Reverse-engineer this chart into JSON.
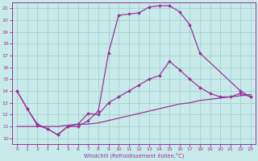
{
  "xlabel": "Windchill (Refroidissement éolien,°C)",
  "bg_color": "#c8eaea",
  "grid_color": "#a0cccc",
  "line_color": "#993399",
  "xlim": [
    -0.5,
    23.5
  ],
  "ylim": [
    9.5,
    21.5
  ],
  "yticks": [
    10,
    11,
    12,
    13,
    14,
    15,
    16,
    17,
    18,
    19,
    20,
    21
  ],
  "xticks": [
    0,
    1,
    2,
    3,
    4,
    5,
    6,
    7,
    8,
    9,
    10,
    11,
    12,
    13,
    14,
    15,
    16,
    17,
    18,
    19,
    20,
    21,
    22,
    23
  ],
  "line1_x": [
    0,
    1,
    2,
    3,
    4,
    5,
    6,
    7,
    8,
    9,
    10,
    11,
    12,
    13,
    14,
    15,
    16,
    17,
    18,
    22,
    23
  ],
  "line1_y": [
    14.0,
    12.5,
    11.1,
    10.8,
    10.3,
    11.0,
    11.0,
    11.5,
    12.3,
    17.2,
    20.4,
    20.5,
    20.6,
    21.1,
    21.2,
    21.2,
    20.7,
    19.6,
    17.2,
    14.0,
    13.5
  ],
  "line2_x": [
    0,
    1,
    2,
    3,
    4,
    5,
    6,
    7,
    8,
    9,
    10,
    11,
    12,
    13,
    14,
    15,
    16,
    17,
    18,
    19,
    20,
    21,
    22,
    23
  ],
  "line2_y": [
    14.0,
    12.5,
    11.2,
    10.8,
    10.3,
    11.0,
    11.2,
    12.1,
    12.0,
    13.0,
    13.5,
    14.0,
    14.5,
    15.0,
    15.3,
    16.5,
    15.8,
    15.0,
    14.3,
    13.8,
    13.5,
    13.5,
    13.8,
    13.5
  ],
  "line3_x": [
    0,
    1,
    2,
    3,
    4,
    5,
    6,
    7,
    8,
    9,
    10,
    11,
    12,
    13,
    14,
    15,
    16,
    17,
    18,
    19,
    20,
    21,
    22,
    23
  ],
  "line3_y": [
    11.0,
    11.0,
    11.0,
    11.0,
    11.0,
    11.1,
    11.2,
    11.2,
    11.3,
    11.5,
    11.7,
    11.9,
    12.1,
    12.3,
    12.5,
    12.7,
    12.9,
    13.0,
    13.2,
    13.3,
    13.4,
    13.5,
    13.6,
    13.7
  ]
}
